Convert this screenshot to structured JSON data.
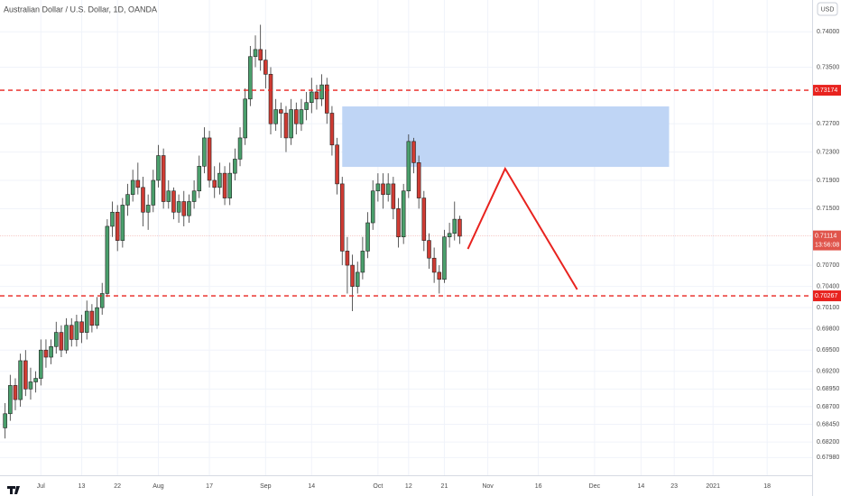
{
  "chart_data": {
    "type": "candlestick",
    "title": "Australian Dollar / U.S. Dollar, 1D, OANDA",
    "currency": "USD",
    "up_color": "#4a9f6c",
    "down_color": "#cf3b33",
    "grid": true,
    "ylim": [
      0.6773,
      0.7445
    ],
    "xlim": [
      -1,
      158
    ],
    "yticks": [
      {
        "value": 0.74,
        "label": "0.74000"
      },
      {
        "value": 0.735,
        "label": "0.73500"
      },
      {
        "value": 0.727,
        "label": "0.72700"
      },
      {
        "value": 0.723,
        "label": "0.72300"
      },
      {
        "value": 0.719,
        "label": "0.71900"
      },
      {
        "value": 0.715,
        "label": "0.71500"
      },
      {
        "value": 0.707,
        "label": "0.70700"
      },
      {
        "value": 0.704,
        "label": "0.70400"
      },
      {
        "value": 0.701,
        "label": "0.70100"
      },
      {
        "value": 0.698,
        "label": "0.69800"
      },
      {
        "value": 0.695,
        "label": "0.69500"
      },
      {
        "value": 0.692,
        "label": "0.69200"
      },
      {
        "value": 0.6895,
        "label": "0.68950"
      },
      {
        "value": 0.687,
        "label": "0.68700"
      },
      {
        "value": 0.6845,
        "label": "0.68450"
      },
      {
        "value": 0.682,
        "label": "0.68200"
      },
      {
        "value": 0.6798,
        "label": "0.67980"
      }
    ],
    "xticks": [
      {
        "value": 7,
        "label": "Jul"
      },
      {
        "value": 15,
        "label": "13"
      },
      {
        "value": 22,
        "label": "22"
      },
      {
        "value": 30,
        "label": "Aug"
      },
      {
        "value": 40,
        "label": "17"
      },
      {
        "value": 51,
        "label": "Sep"
      },
      {
        "value": 60,
        "label": "14"
      },
      {
        "value": 73,
        "label": "Oct"
      },
      {
        "value": 79,
        "label": "12"
      },
      {
        "value": 86,
        "label": "21"
      },
      {
        "value": 94.5,
        "label": "Nov"
      },
      {
        "value": 104.4,
        "label": "16"
      },
      {
        "value": 115.4,
        "label": "Dec"
      },
      {
        "value": 124.5,
        "label": "14"
      },
      {
        "value": 131,
        "label": "23"
      },
      {
        "value": 138.6,
        "label": "2021"
      },
      {
        "value": 149.2,
        "label": "18"
      }
    ],
    "candles": [
      [
        0.684,
        0.6875,
        0.6825,
        0.686
      ],
      [
        0.686,
        0.6915,
        0.685,
        0.69
      ],
      [
        0.69,
        0.691,
        0.6865,
        0.688
      ],
      [
        0.688,
        0.6945,
        0.687,
        0.6935
      ],
      [
        0.6935,
        0.695,
        0.6885,
        0.6895
      ],
      [
        0.6895,
        0.6925,
        0.688,
        0.6905
      ],
      [
        0.6905,
        0.692,
        0.689,
        0.691
      ],
      [
        0.691,
        0.6965,
        0.69,
        0.695
      ],
      [
        0.695,
        0.6965,
        0.6925,
        0.694
      ],
      [
        0.694,
        0.6965,
        0.693,
        0.6955
      ],
      [
        0.6955,
        0.699,
        0.6945,
        0.6975
      ],
      [
        0.6975,
        0.6985,
        0.694,
        0.695
      ],
      [
        0.695,
        0.6995,
        0.6945,
        0.6985
      ],
      [
        0.6985,
        0.6995,
        0.6955,
        0.6965
      ],
      [
        0.6965,
        0.7,
        0.6955,
        0.699
      ],
      [
        0.699,
        0.7,
        0.696,
        0.6975
      ],
      [
        0.6975,
        0.702,
        0.6965,
        0.7005
      ],
      [
        0.7005,
        0.7015,
        0.6975,
        0.6985
      ],
      [
        0.6985,
        0.7025,
        0.698,
        0.701
      ],
      [
        0.701,
        0.7045,
        0.7,
        0.703
      ],
      [
        0.703,
        0.7135,
        0.7025,
        0.7125
      ],
      [
        0.7125,
        0.716,
        0.711,
        0.7145
      ],
      [
        0.7145,
        0.7155,
        0.709,
        0.7105
      ],
      [
        0.7105,
        0.7165,
        0.7095,
        0.7155
      ],
      [
        0.7155,
        0.7185,
        0.714,
        0.717
      ],
      [
        0.717,
        0.7205,
        0.716,
        0.719
      ],
      [
        0.719,
        0.7215,
        0.717,
        0.718
      ],
      [
        0.718,
        0.7195,
        0.7125,
        0.7145
      ],
      [
        0.7145,
        0.717,
        0.712,
        0.7155
      ],
      [
        0.7155,
        0.7205,
        0.7145,
        0.719
      ],
      [
        0.719,
        0.724,
        0.718,
        0.7225
      ],
      [
        0.7225,
        0.7235,
        0.715,
        0.716
      ],
      [
        0.716,
        0.719,
        0.715,
        0.7175
      ],
      [
        0.7175,
        0.718,
        0.7135,
        0.7145
      ],
      [
        0.7145,
        0.717,
        0.713,
        0.716
      ],
      [
        0.716,
        0.7175,
        0.7125,
        0.714
      ],
      [
        0.714,
        0.717,
        0.713,
        0.716
      ],
      [
        0.716,
        0.719,
        0.715,
        0.7175
      ],
      [
        0.7175,
        0.7225,
        0.7165,
        0.721
      ],
      [
        0.721,
        0.7265,
        0.72,
        0.725
      ],
      [
        0.725,
        0.726,
        0.718,
        0.719
      ],
      [
        0.719,
        0.721,
        0.7165,
        0.718
      ],
      [
        0.718,
        0.7215,
        0.717,
        0.72
      ],
      [
        0.72,
        0.721,
        0.7155,
        0.7165
      ],
      [
        0.7165,
        0.7215,
        0.7155,
        0.72
      ],
      [
        0.72,
        0.7235,
        0.719,
        0.722
      ],
      [
        0.722,
        0.7265,
        0.721,
        0.725
      ],
      [
        0.725,
        0.732,
        0.724,
        0.7305
      ],
      [
        0.7305,
        0.738,
        0.7295,
        0.7365
      ],
      [
        0.7365,
        0.7395,
        0.735,
        0.7375
      ],
      [
        0.7375,
        0.741,
        0.7345,
        0.736
      ],
      [
        0.736,
        0.7375,
        0.732,
        0.734
      ],
      [
        0.734,
        0.735,
        0.7255,
        0.727
      ],
      [
        0.727,
        0.7305,
        0.726,
        0.729
      ],
      [
        0.729,
        0.73,
        0.725,
        0.7285
      ],
      [
        0.7285,
        0.7295,
        0.723,
        0.725
      ],
      [
        0.725,
        0.7305,
        0.724,
        0.729
      ],
      [
        0.729,
        0.73,
        0.7255,
        0.727
      ],
      [
        0.727,
        0.7305,
        0.726,
        0.729
      ],
      [
        0.729,
        0.7315,
        0.7275,
        0.73
      ],
      [
        0.73,
        0.7335,
        0.7285,
        0.7315
      ],
      [
        0.7315,
        0.7325,
        0.729,
        0.7305
      ],
      [
        0.7305,
        0.734,
        0.7295,
        0.7325
      ],
      [
        0.7325,
        0.7335,
        0.727,
        0.7285
      ],
      [
        0.7285,
        0.7295,
        0.7225,
        0.724
      ],
      [
        0.724,
        0.725,
        0.717,
        0.7185
      ],
      [
        0.7185,
        0.7195,
        0.707,
        0.709
      ],
      [
        0.709,
        0.711,
        0.703,
        0.707
      ],
      [
        0.707,
        0.7085,
        0.7005,
        0.704
      ],
      [
        0.704,
        0.7075,
        0.703,
        0.706
      ],
      [
        0.706,
        0.711,
        0.705,
        0.709
      ],
      [
        0.709,
        0.7145,
        0.708,
        0.713
      ],
      [
        0.713,
        0.719,
        0.712,
        0.7175
      ],
      [
        0.7175,
        0.72,
        0.716,
        0.7185
      ],
      [
        0.7185,
        0.72,
        0.715,
        0.717
      ],
      [
        0.717,
        0.72,
        0.716,
        0.7185
      ],
      [
        0.7185,
        0.7195,
        0.7135,
        0.715
      ],
      [
        0.715,
        0.7165,
        0.7095,
        0.711
      ],
      [
        0.711,
        0.7185,
        0.71,
        0.7175
      ],
      [
        0.7175,
        0.7255,
        0.7165,
        0.7245
      ],
      [
        0.7245,
        0.725,
        0.72,
        0.7215
      ],
      [
        0.7215,
        0.7225,
        0.715,
        0.7165
      ],
      [
        0.7165,
        0.7175,
        0.709,
        0.7105
      ],
      [
        0.7105,
        0.7115,
        0.7065,
        0.708
      ],
      [
        0.708,
        0.7095,
        0.7045,
        0.706
      ],
      [
        0.706,
        0.707,
        0.703,
        0.705
      ],
      [
        0.705,
        0.712,
        0.7045,
        0.711
      ],
      [
        0.711,
        0.713,
        0.7095,
        0.7115
      ],
      [
        0.7115,
        0.716,
        0.7105,
        0.7135
      ],
      [
        0.7135,
        0.714,
        0.71,
        0.7111
      ]
    ],
    "levels": [
      {
        "value": 0.73174,
        "label": "0.73174",
        "color": "#e8231f"
      },
      {
        "value": 0.70267,
        "label": "0.70267",
        "color": "#e8231f"
      }
    ],
    "last_price": {
      "value": 0.71114,
      "label": "0.71114",
      "countdown": "13:56:08",
      "color": "#e0544b"
    },
    "zone": {
      "x": [
        66,
        130
      ],
      "y": [
        0.7209,
        0.72945
      ],
      "color": "#bcd3f4"
    },
    "projection": {
      "x": [
        90.6,
        97.9,
        112
      ],
      "y": [
        0.7093,
        0.72065,
        0.70357
      ],
      "color": "#e8231f"
    }
  }
}
